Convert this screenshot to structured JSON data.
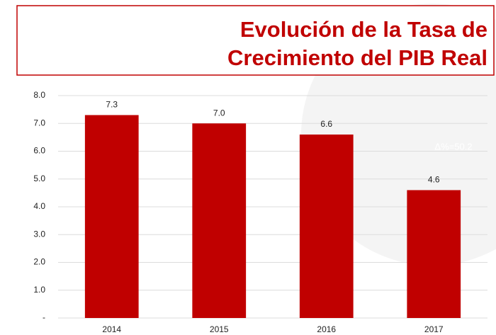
{
  "chart_data": {
    "type": "bar",
    "title": [
      "Evolución de la Tasa de",
      "Crecimiento del PIB Real"
    ],
    "categories": [
      "2014",
      "2015",
      "2016",
      "2017"
    ],
    "values": [
      7.3,
      7.0,
      6.6,
      4.6
    ],
    "value_labels": [
      "7.3",
      "7.0",
      "6.6",
      "4.6"
    ],
    "color": "#c00000",
    "annotation": "Δ%=50.2",
    "ylim": [
      0,
      8
    ],
    "yticks": [
      {
        "value": 0,
        "label": "-"
      },
      {
        "value": 1,
        "label": "1.0"
      },
      {
        "value": 2,
        "label": "2.0"
      },
      {
        "value": 3,
        "label": "3.0"
      },
      {
        "value": 4,
        "label": "4.0"
      },
      {
        "value": 5,
        "label": "5.0"
      },
      {
        "value": 6,
        "label": "6.0"
      },
      {
        "value": 7,
        "label": "7.0"
      },
      {
        "value": 8,
        "label": "8.0"
      }
    ],
    "grid": true
  }
}
